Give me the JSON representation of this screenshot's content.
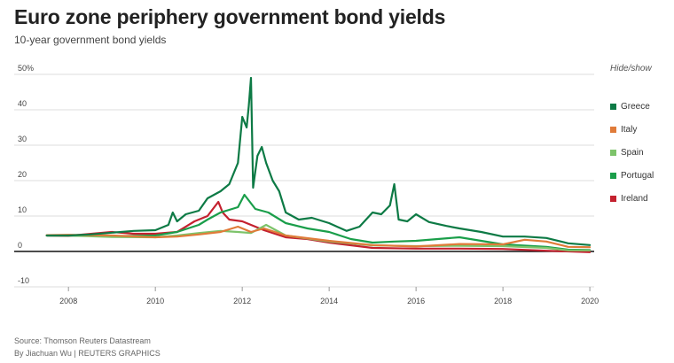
{
  "title": "Euro zone periphery government bond yields",
  "subtitle": "10-year government bond yields",
  "legend": {
    "heading": "Hide/show",
    "items": [
      {
        "label": "Greece",
        "color": "#0d7a45"
      },
      {
        "label": "Italy",
        "color": "#e07b39"
      },
      {
        "label": "Spain",
        "color": "#7dc36a"
      },
      {
        "label": "Portugal",
        "color": "#1a9e4a"
      },
      {
        "label": "Ireland",
        "color": "#c4212f"
      }
    ]
  },
  "source": "Source: Thomson Reuters Datastream",
  "credit": "By Jiachuan Wu | REUTERS GRAPHICS",
  "chart_data": {
    "type": "line",
    "title": "Euro zone periphery government bond yields",
    "subtitle": "10-year government bond yields",
    "xlabel": "",
    "ylabel": "",
    "xlim": [
      2007.2,
      2020.1
    ],
    "ylim": [
      -10,
      50
    ],
    "y_ticks": [
      -10,
      0,
      10,
      20,
      30,
      40,
      50
    ],
    "y_tick_labels": [
      "-10",
      "0",
      "10",
      "20",
      "30",
      "40",
      "50%"
    ],
    "x_ticks": [
      2008,
      2010,
      2012,
      2014,
      2016,
      2018,
      2020
    ],
    "x_tick_labels": [
      "2008",
      "2010",
      "2012",
      "2014",
      "2016",
      "2018",
      "2020"
    ],
    "grid": true,
    "series": [
      {
        "name": "Greece",
        "color": "#0d7a45",
        "x": [
          2007.5,
          2008,
          2008.5,
          2009,
          2009.5,
          2010,
          2010.3,
          2010.4,
          2010.5,
          2010.7,
          2011,
          2011.2,
          2011.5,
          2011.7,
          2011.9,
          2012.0,
          2012.1,
          2012.15,
          2012.2,
          2012.25,
          2012.35,
          2012.45,
          2012.55,
          2012.7,
          2012.85,
          2013,
          2013.3,
          2013.6,
          2014,
          2014.4,
          2014.7,
          2015,
          2015.2,
          2015.4,
          2015.5,
          2015.6,
          2015.8,
          2016,
          2016.3,
          2016.7,
          2017,
          2017.5,
          2018,
          2018.5,
          2019,
          2019.5,
          2020.0
        ],
        "values": [
          4.5,
          4.5,
          4.8,
          5.3,
          5.8,
          6.0,
          7.5,
          11.0,
          8.5,
          10.5,
          11.5,
          15.0,
          17.0,
          19.0,
          25.0,
          38.0,
          35.0,
          41.0,
          49.0,
          18.0,
          27.0,
          29.5,
          25.0,
          20.0,
          17.0,
          11.0,
          9.0,
          9.5,
          8.0,
          5.8,
          7.0,
          11.0,
          10.5,
          13.0,
          19.0,
          9.0,
          8.5,
          10.5,
          8.3,
          7.2,
          6.5,
          5.5,
          4.2,
          4.2,
          3.8,
          2.3,
          1.8
        ]
      },
      {
        "name": "Italy",
        "color": "#e07b39",
        "x": [
          2007.5,
          2008,
          2009,
          2010,
          2010.5,
          2011,
          2011.5,
          2011.9,
          2012.2,
          2012.5,
          2013,
          2014,
          2015,
          2016,
          2017,
          2018,
          2018.5,
          2019,
          2019.5,
          2020.0
        ],
        "values": [
          4.6,
          4.7,
          4.5,
          4.0,
          4.2,
          4.8,
          5.5,
          7.0,
          5.5,
          6.5,
          4.5,
          3.0,
          1.8,
          1.4,
          2.1,
          2.0,
          3.3,
          2.8,
          1.3,
          1.2
        ]
      },
      {
        "name": "Spain",
        "color": "#7dc36a",
        "x": [
          2007.5,
          2008,
          2009,
          2010,
          2010.5,
          2011,
          2011.5,
          2011.9,
          2012.2,
          2012.55,
          2013,
          2014,
          2015,
          2016,
          2017,
          2018,
          2019,
          2019.5,
          2020.0
        ],
        "values": [
          4.5,
          4.5,
          4.1,
          4.0,
          4.5,
          5.2,
          5.8,
          5.5,
          5.2,
          7.5,
          4.5,
          2.8,
          1.7,
          1.5,
          1.6,
          1.5,
          1.0,
          0.3,
          0.3
        ]
      },
      {
        "name": "Portugal",
        "color": "#1a9e4a",
        "x": [
          2007.5,
          2008,
          2009,
          2010,
          2010.5,
          2011,
          2011.2,
          2011.5,
          2011.9,
          2012.05,
          2012.3,
          2012.6,
          2013,
          2013.5,
          2014,
          2014.5,
          2015,
          2015.5,
          2016,
          2016.5,
          2017,
          2017.5,
          2018,
          2019,
          2019.5,
          2020.0
        ],
        "values": [
          4.5,
          4.5,
          4.3,
          4.5,
          5.5,
          7.5,
          9.0,
          11.0,
          12.5,
          16.0,
          12.0,
          11.0,
          8.0,
          6.5,
          5.5,
          3.5,
          2.5,
          2.8,
          3.0,
          3.5,
          4.0,
          3.0,
          2.0,
          1.3,
          0.5,
          0.4
        ]
      },
      {
        "name": "Ireland",
        "color": "#c4212f",
        "x": [
          2007.5,
          2008,
          2009,
          2009.5,
          2010,
          2010.5,
          2010.9,
          2011,
          2011.2,
          2011.45,
          2011.55,
          2011.7,
          2012,
          2012.5,
          2013,
          2013.5,
          2014,
          2015,
          2016,
          2017,
          2018,
          2019,
          2020.0
        ],
        "values": [
          4.5,
          4.4,
          5.5,
          5.0,
          5.0,
          5.5,
          8.5,
          9.0,
          10.0,
          14.0,
          11.0,
          9.0,
          8.5,
          6.0,
          4.0,
          3.5,
          2.5,
          1.0,
          0.8,
          0.8,
          0.7,
          0.2,
          -0.2
        ]
      }
    ]
  }
}
